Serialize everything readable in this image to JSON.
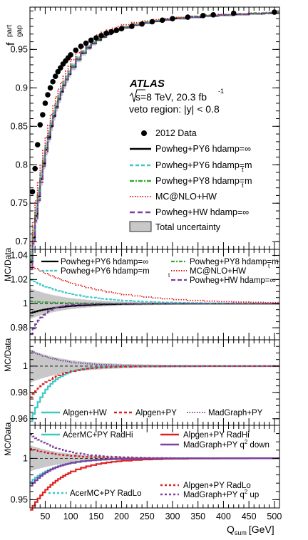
{
  "chart_data": {
    "type": "line",
    "x_axis": {
      "label_main": "Q",
      "label_sub": "sum",
      "label_unit": "[GeV]",
      "range": [
        20,
        510
      ],
      "ticks": [
        "50",
        "100",
        "150",
        "200",
        "250",
        "300",
        "350",
        "400",
        "450",
        "500"
      ]
    },
    "main": {
      "ylabel_main": "f",
      "ylabel_sup": "part",
      "ylabel_sub": "gap",
      "ylim": [
        0.69,
        1.005
      ],
      "yticks": [
        "0.7",
        "0.75",
        "0.8",
        "0.85",
        "0.9",
        "0.95"
      ],
      "atlas": "ATLAS",
      "info_energy": "s=8 TeV, 20.3 fb",
      "info_exp": "-1",
      "info_region": "veto region: |y| < 0.8",
      "legend": {
        "data": "2012 Data",
        "pwgpy6": "Powheg+PY6 hdamp=∞",
        "pwgpy6mt": "Powheg+PY6 hdamp=m",
        "pwgpy8mt": "Powheg+PY8 hdamp=m",
        "mcnlo": "MC@NLO+HW",
        "pwghw": "Powheg+HW hdamp=∞",
        "unc": "Total uncertainty",
        "sub_t": "t"
      },
      "data_points": {
        "x": [
          25,
          30,
          35,
          40,
          45,
          50,
          55,
          60,
          65,
          70,
          75,
          80,
          85,
          90,
          95,
          100,
          110,
          120,
          130,
          140,
          150,
          160,
          170,
          180,
          190,
          200,
          220,
          240,
          260,
          280,
          300,
          330,
          360,
          380,
          420,
          500
        ],
        "y": [
          0.765,
          0.795,
          0.826,
          0.852,
          0.865,
          0.88,
          0.891,
          0.9,
          0.908,
          0.915,
          0.921,
          0.926,
          0.931,
          0.935,
          0.939,
          0.943,
          0.949,
          0.954,
          0.958,
          0.962,
          0.965,
          0.968,
          0.971,
          0.973,
          0.975,
          0.977,
          0.98,
          0.983,
          0.986,
          0.988,
          0.99,
          0.992,
          0.994,
          0.995,
          0.997,
          0.9985
        ]
      }
    },
    "ratio_panels": [
      {
        "ylabel": "MC/Data",
        "yticks": [
          "0.98",
          "1",
          "1.02",
          "1.04"
        ],
        "ylim": [
          0.97,
          1.045
        ],
        "legend": {
          "pwgpy6": "Powheg+PY6 hdamp=∞",
          "pwgpy6mt": "Powheg+PY6 hdamp=m",
          "pwgpy8mt": "Powheg+PY8 hdamp=m",
          "mcnlo": "MC@NLO+HW",
          "pwghw": "Powheg+HW  hdamp=∞",
          "sub_t": "t"
        }
      },
      {
        "ylabel": "MC/Data",
        "yticks": [
          "0.96",
          "0.98",
          "1"
        ],
        "ylim": [
          0.955,
          1.02
        ],
        "legend": {
          "alpgenhw": "Alpgen+HW",
          "alpgenpy": "Alpgen+PY",
          "madgraph": "MadGraph+PY"
        }
      },
      {
        "ylabel": "MC/Data",
        "yticks": [
          "0.95",
          "1"
        ],
        "ylim": [
          0.94,
          1.04
        ],
        "legend": {
          "acerhi": "AcerMC+PY RadHi",
          "alphi": "Alpgen+PY RadHi",
          "mgdown": "MadGraph+PY q",
          "mgdown_sup": "2",
          "mgdown_tail": " down",
          "acerlo": "AcerMC+PY RadLo",
          "alplo": "Alpgen+PY RadLo",
          "mgup": "MadGraph+PY q",
          "mgup_sup": "2",
          "mgup_tail": " up"
        }
      }
    ],
    "colors": {
      "black": "#000000",
      "cyan": "#3cc8c8",
      "green": "#3aa63a",
      "red": "#e02020",
      "purple": "#7a3fa0",
      "gray": "#c8c8c8"
    }
  }
}
